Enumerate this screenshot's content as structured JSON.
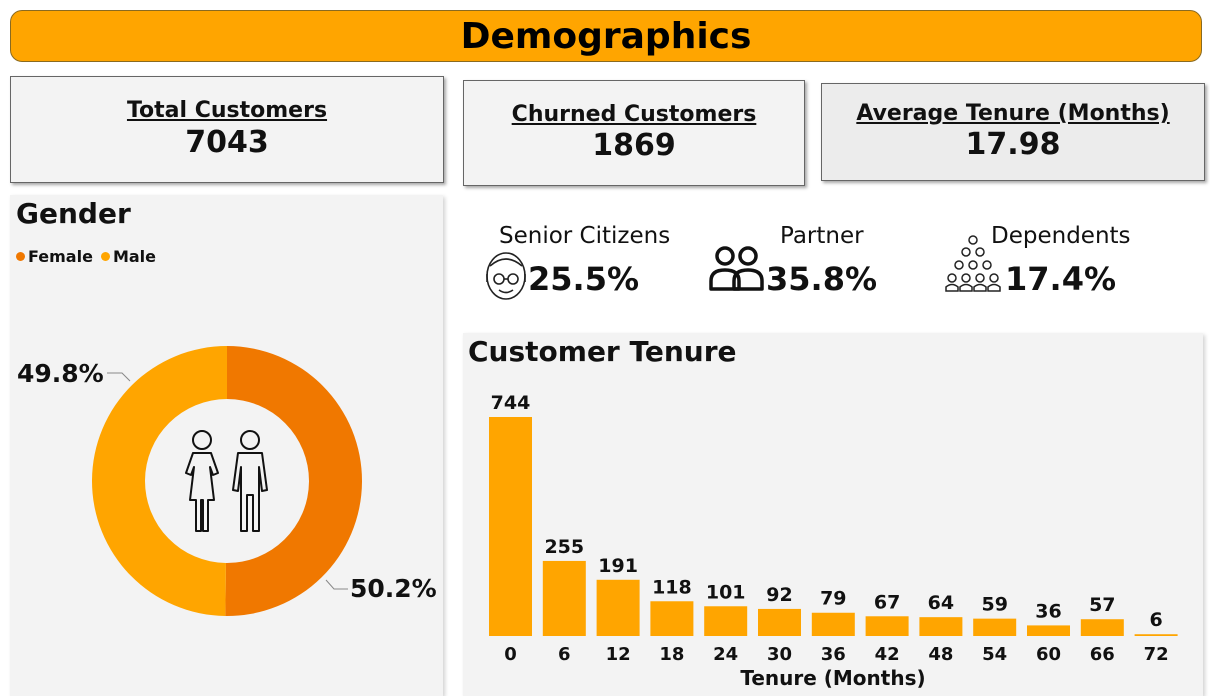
{
  "header": {
    "title": "Demographics"
  },
  "kpis": {
    "total_customers": {
      "label": "Total Customers",
      "value": "7043"
    },
    "churned_customers": {
      "label": "Churned Customers",
      "value": "1869"
    },
    "average_tenure": {
      "label": "Average Tenure (Months)",
      "value": "17.98"
    }
  },
  "stats": {
    "senior": {
      "label": "Senior Citizens",
      "value": "25.5%",
      "icon": "senior-citizen-icon"
    },
    "partner": {
      "label": "Partner",
      "value": "35.8%",
      "icon": "partner-people-icon"
    },
    "dependents": {
      "label": "Dependents",
      "value": "17.4%",
      "icon": "dependents-group-icon"
    }
  },
  "gender": {
    "title": "Gender",
    "icon": "gender-couple-icon",
    "legend": [
      {
        "name": "Female",
        "color": "#F07800"
      },
      {
        "name": "Male",
        "color": "#FFA500"
      }
    ]
  },
  "colors": {
    "accent": "#FFA500",
    "female": "#F07800",
    "male": "#FFA500",
    "panel": "#f3f3f3"
  },
  "chart_data": [
    {
      "type": "pie",
      "variant": "donut",
      "title": "Gender",
      "slices": [
        {
          "name": "Female",
          "value": 50.2,
          "label": "50.2%"
        },
        {
          "name": "Male",
          "value": 49.8,
          "label": "49.8%"
        }
      ],
      "legend": "top-left"
    },
    {
      "type": "bar",
      "title": "Customer Tenure",
      "xlabel": "Tenure (Months)",
      "ylabel": "",
      "categories": [
        "0",
        "6",
        "12",
        "18",
        "24",
        "30",
        "36",
        "42",
        "48",
        "54",
        "60",
        "66",
        "72"
      ],
      "values": [
        744,
        255,
        191,
        118,
        101,
        92,
        79,
        67,
        64,
        59,
        36,
        57,
        6
      ],
      "ylim": [
        0,
        744
      ],
      "grid": false
    }
  ]
}
